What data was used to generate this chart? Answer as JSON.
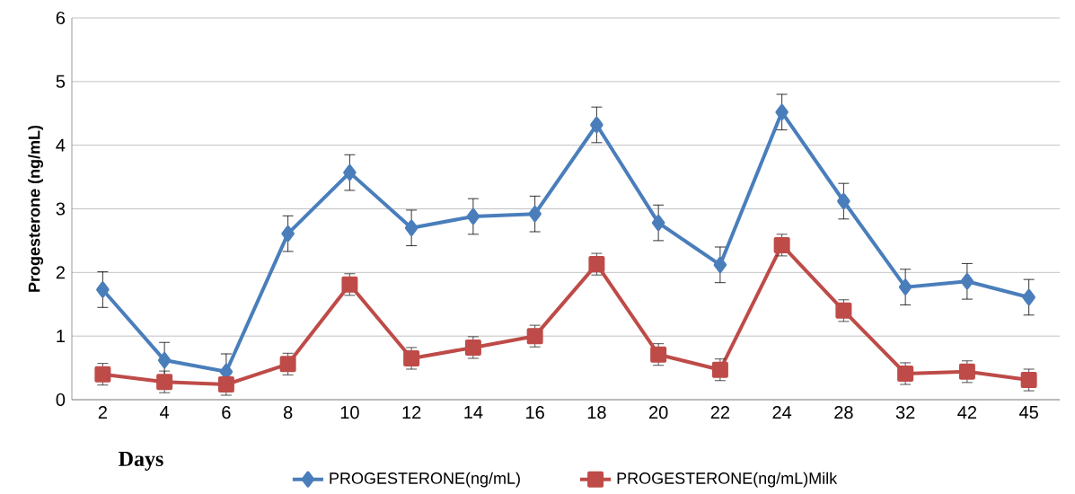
{
  "chart_data": {
    "type": "line",
    "xlabel": "Days",
    "ylabel": "Progesterone (ng/mL)",
    "categories": [
      "2",
      "4",
      "6",
      "8",
      "10",
      "12",
      "14",
      "16",
      "18",
      "20",
      "22",
      "24",
      "28",
      "32",
      "42",
      "45"
    ],
    "series": [
      {
        "name": "PROGESTERONE(ng/mL)",
        "color": "#4a7ebb",
        "marker": "diamond",
        "values": [
          1.73,
          0.62,
          0.44,
          2.61,
          3.57,
          2.7,
          2.88,
          2.92,
          4.32,
          2.78,
          2.12,
          4.52,
          3.12,
          1.77,
          1.86,
          1.61
        ],
        "errors": [
          0.28,
          0.28,
          0.28,
          0.28,
          0.28,
          0.28,
          0.28,
          0.28,
          0.28,
          0.28,
          0.28,
          0.28,
          0.28,
          0.28,
          0.28,
          0.28
        ]
      },
      {
        "name": "PROGESTERONE(ng/mL)Milk",
        "color": "#be4b48",
        "marker": "square",
        "values": [
          0.4,
          0.28,
          0.24,
          0.56,
          1.81,
          0.65,
          0.82,
          1.0,
          2.13,
          0.71,
          0.47,
          2.43,
          1.4,
          0.41,
          0.44,
          0.31
        ],
        "errors": [
          0.17,
          0.17,
          0.17,
          0.17,
          0.17,
          0.17,
          0.17,
          0.17,
          0.17,
          0.17,
          0.17,
          0.17,
          0.17,
          0.17,
          0.17,
          0.17
        ]
      }
    ],
    "ylim": [
      0,
      6
    ],
    "yticks": [
      0,
      1,
      2,
      3,
      4,
      5,
      6
    ],
    "grid": "y",
    "legend": "bottom"
  }
}
